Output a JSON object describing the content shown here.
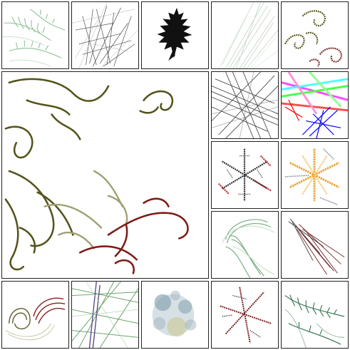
{
  "tiles": [
    {
      "name": "green-fern-tile",
      "colors": [
        "#7fae86",
        "#9fc7a5"
      ]
    },
    {
      "name": "black-grass-sketch-tile",
      "colors": [
        "#1a1a1a",
        "#7a7a7a"
      ]
    },
    {
      "name": "black-leaf-silhouette-tile",
      "colors": [
        "#111111"
      ]
    },
    {
      "name": "pale-green-brush-tile",
      "colors": [
        "#a9c8ad",
        "#d4e4d6"
      ]
    },
    {
      "name": "olive-red-spiral-tile",
      "colors": [
        "#5b5a22",
        "#7b2b2b"
      ]
    },
    {
      "name": "large-julia-fractal-tile",
      "colors": [
        "#54531d",
        "#9e9f70",
        "#7b1c16"
      ]
    },
    {
      "name": "black-crosshatch-tile",
      "colors": [
        "#111111",
        "#666666"
      ]
    },
    {
      "name": "rainbow-crosshatch-tile",
      "colors": [
        "#ff00ff",
        "#00ffff",
        "#00ff00",
        "#0000ff",
        "#ff0000"
      ]
    },
    {
      "name": "grey-red-snowflake-tile",
      "colors": [
        "#2a2a2a",
        "#b03030"
      ]
    },
    {
      "name": "orange-snowflake-tile",
      "colors": [
        "#e7a63a",
        "#6a6a8a"
      ]
    },
    {
      "name": "green-spiral-strokes-tile",
      "colors": [
        "#5a9a63",
        "#bcd9bf"
      ]
    },
    {
      "name": "dark-red-plume-tile",
      "colors": [
        "#6b1c1c",
        "#333333"
      ]
    },
    {
      "name": "shell-curl-tile",
      "colors": [
        "#5d5a2c",
        "#8a1f1f",
        "#c8c6a6"
      ]
    },
    {
      "name": "green-purple-strands-tile",
      "colors": [
        "#3f8a3f",
        "#5a4a8a"
      ]
    },
    {
      "name": "blue-grey-cloud-tile",
      "colors": [
        "#7b9aa8",
        "#c8c78a"
      ]
    },
    {
      "name": "red-snowflake-tile",
      "colors": [
        "#7a1a1a",
        "#3a3a3a"
      ]
    },
    {
      "name": "green-fern-branch-tile",
      "colors": [
        "#2f6e4a",
        "#7aa88a"
      ]
    }
  ]
}
